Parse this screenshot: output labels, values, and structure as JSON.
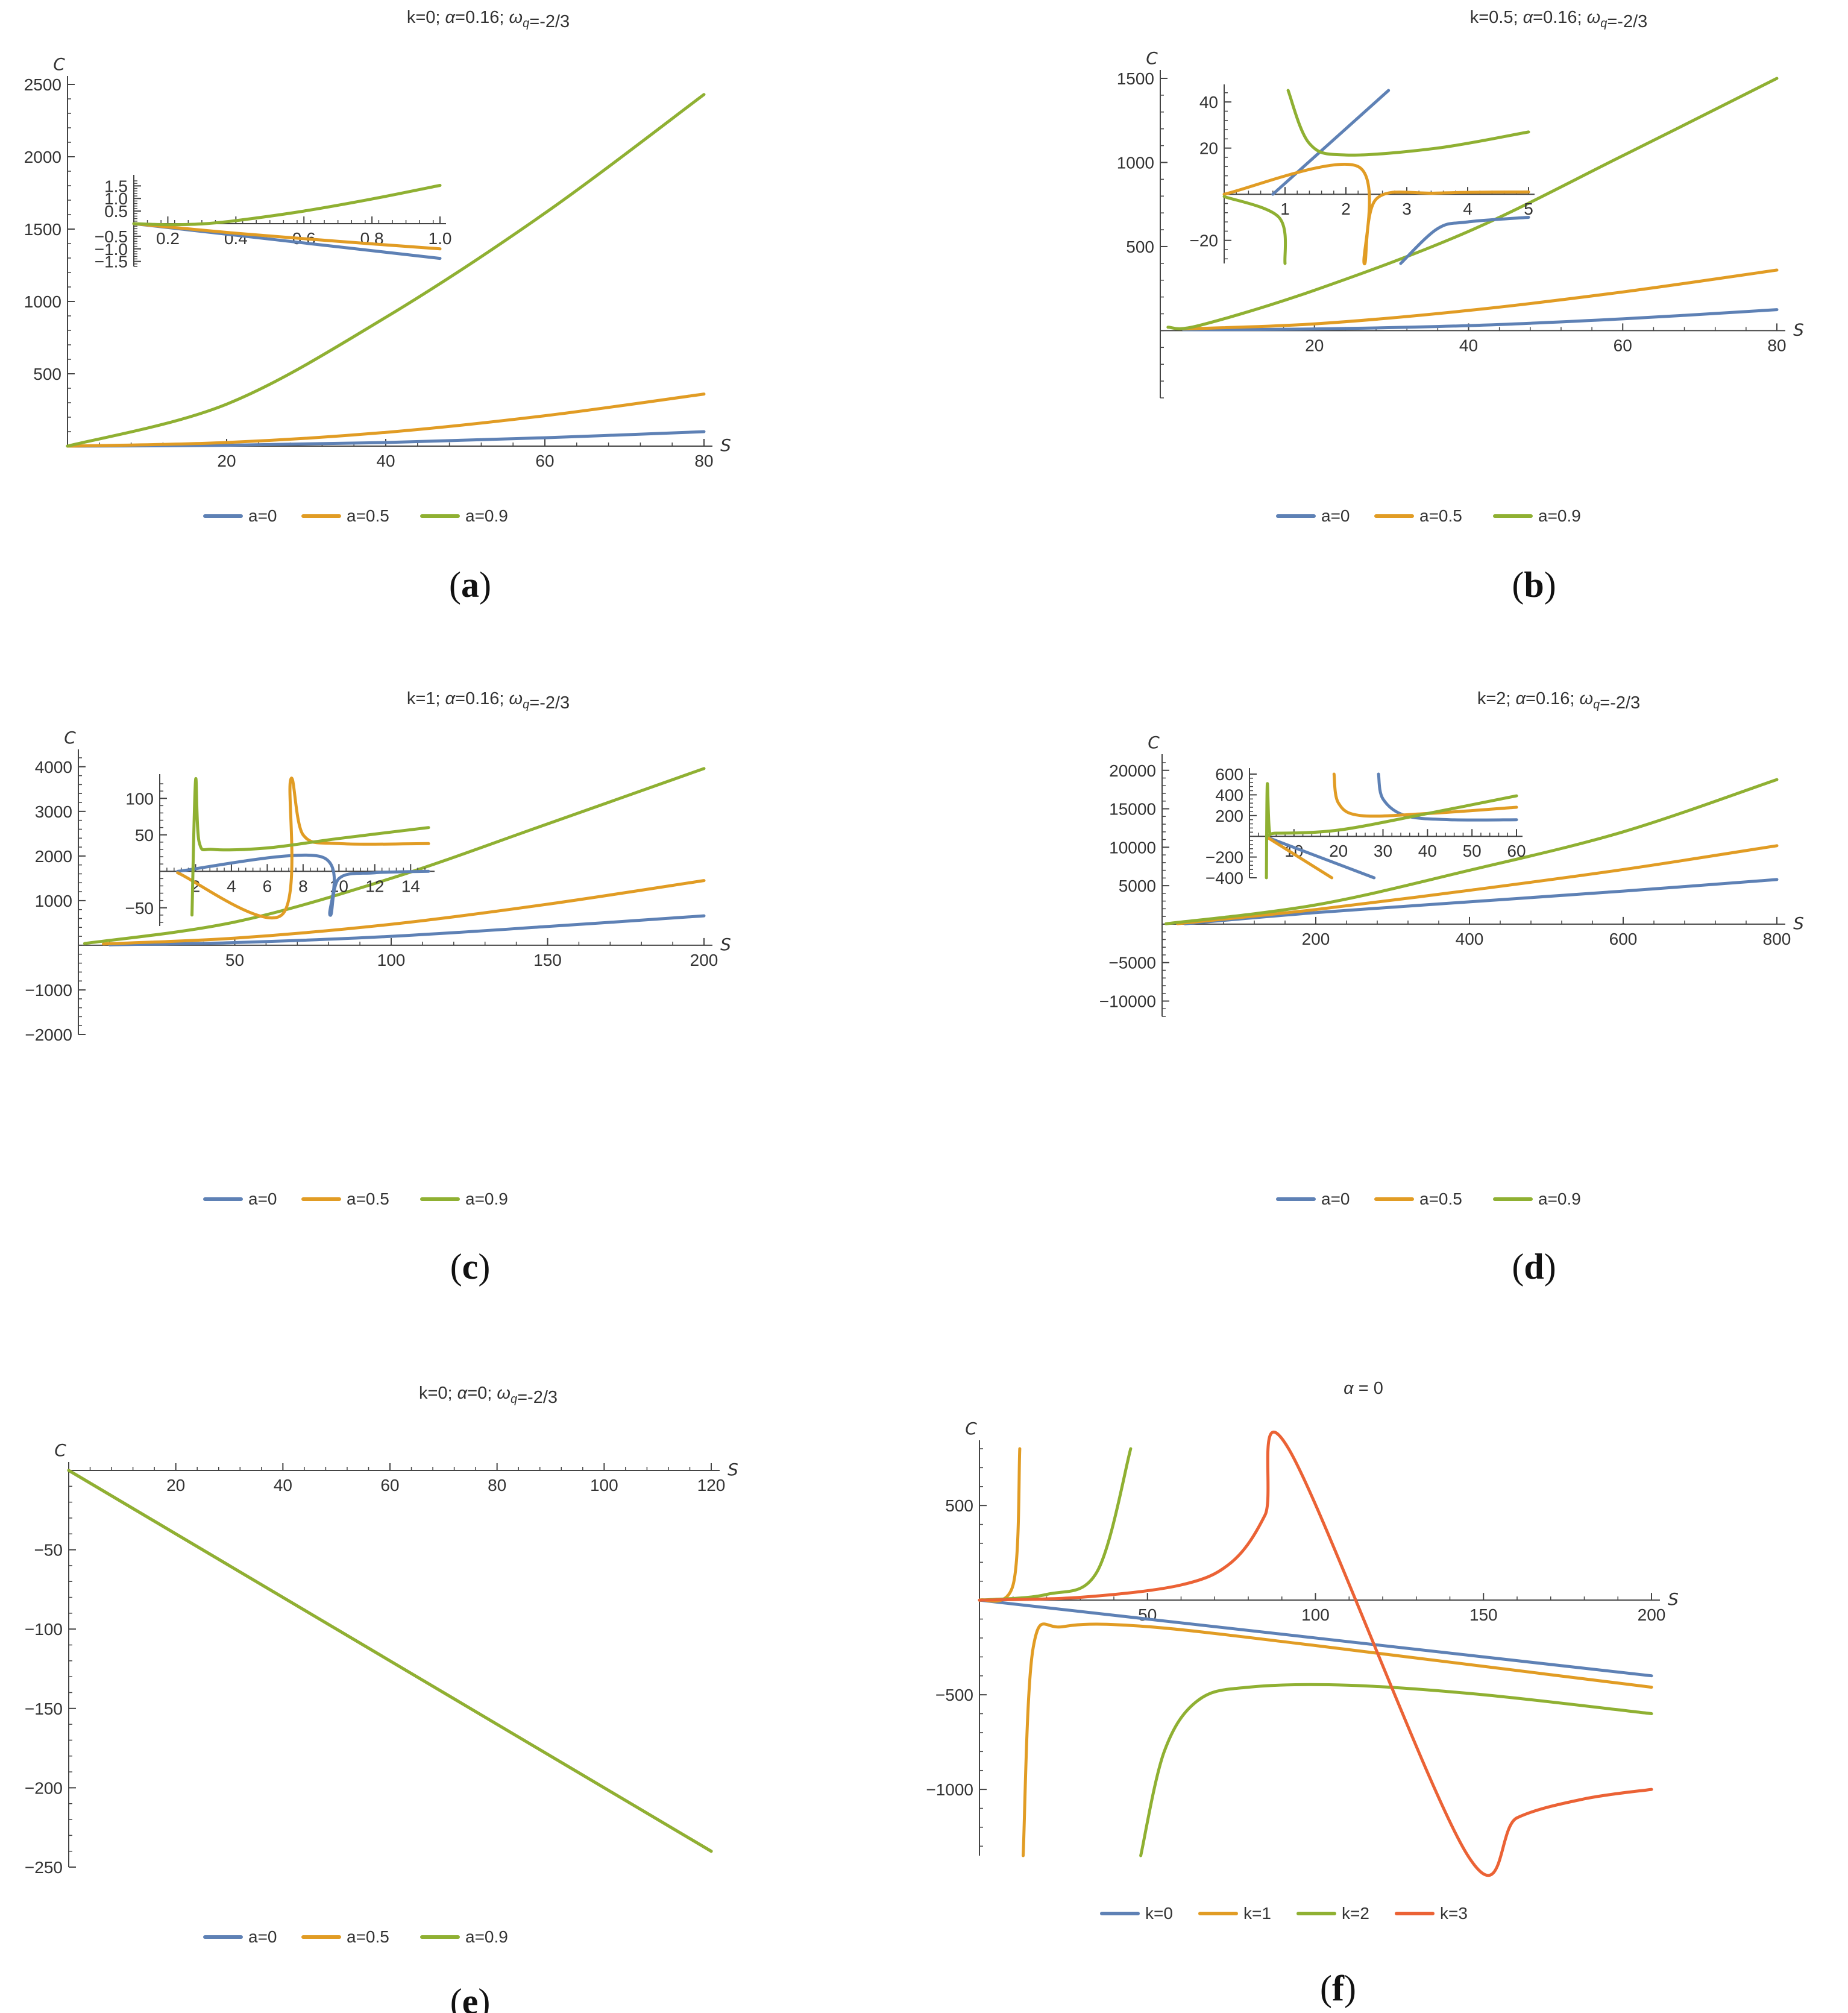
{
  "colors": {
    "a0": "#5E81B5",
    "a05": "#E19C24",
    "a09": "#8FB032",
    "k3": "#EB6235",
    "axis": "#444444"
  },
  "chart_data": [
    {
      "id": "a",
      "type": "line",
      "panel_label": "a",
      "title": "k=0; α=0.16; ω_q=-2/3",
      "xlabel": "S",
      "ylabel": "C",
      "xlim": [
        0,
        80
      ],
      "ylim": [
        0,
        2500
      ],
      "xticks": [
        "20",
        "40",
        "60",
        "80"
      ],
      "yticks": [
        "500",
        "1000",
        "1500",
        "2000",
        "2500"
      ],
      "legend": [
        "a=0",
        "a=0.5",
        "a=0.9"
      ],
      "series": [
        {
          "name": "a=0",
          "x": [
            0,
            20,
            40,
            60,
            80
          ],
          "y": [
            0,
            6,
            25,
            58,
            100
          ]
        },
        {
          "name": "a=0.5",
          "x": [
            0,
            20,
            40,
            60,
            80
          ],
          "y": [
            0,
            25,
            95,
            210,
            360
          ]
        },
        {
          "name": "a=0.9",
          "x": [
            0,
            20,
            40,
            60,
            80
          ],
          "y": [
            0,
            290,
            890,
            1610,
            2430
          ]
        }
      ],
      "inset": {
        "xlim": [
          0.1,
          1.0
        ],
        "ylim": [
          -1.7,
          1.7
        ],
        "xticks": [
          "0.2",
          "0.4",
          "0.6",
          "0.8",
          "1.0"
        ],
        "yticks": [
          "-1.5",
          "-1.0",
          "-0.5",
          "0.5",
          "1.0",
          "1.5"
        ],
        "series": [
          {
            "name": "a=0",
            "x": [
              0.1,
              0.4,
              0.7,
              1.0
            ],
            "y": [
              0.0,
              -0.46,
              -0.92,
              -1.38
            ]
          },
          {
            "name": "a=0.5",
            "x": [
              0.1,
              0.4,
              0.7,
              1.0
            ],
            "y": [
              0.0,
              -0.38,
              -0.7,
              -1.0
            ]
          },
          {
            "name": "a=0.9",
            "x": [
              0.1,
              0.2,
              0.3,
              0.4,
              0.6,
              0.8,
              1.0
            ],
            "y": [
              0.0,
              -0.04,
              -0.01,
              0.12,
              0.5,
              0.98,
              1.52
            ]
          }
        ]
      }
    },
    {
      "id": "b",
      "type": "line",
      "panel_label": "b",
      "title": "k=0.5; α=0.16; ω_q=-2/3",
      "xlabel": "S",
      "ylabel": "C",
      "xlim": [
        0,
        80
      ],
      "ylim": [
        -400,
        1500
      ],
      "xticks": [
        "20",
        "40",
        "60",
        "80"
      ],
      "yticks": [
        "500",
        "1000",
        "1500"
      ],
      "legend": [
        "a=0",
        "a=0.5",
        "a=0.9"
      ],
      "series": [
        {
          "name": "a=0",
          "x": [
            3,
            20,
            40,
            60,
            80
          ],
          "y": [
            5,
            10,
            30,
            70,
            125
          ]
        },
        {
          "name": "a=0.5",
          "x": [
            3,
            20,
            40,
            60,
            80
          ],
          "y": [
            10,
            40,
            120,
            230,
            360
          ]
        },
        {
          "name": "a=0.9",
          "x": [
            1,
            5,
            20,
            40,
            60,
            80
          ],
          "y": [
            20,
            30,
            240,
            590,
            1040,
            1530
          ]
        }
      ],
      "inset": {
        "xlim": [
          0,
          5
        ],
        "ylim": [
          -30,
          45
        ],
        "xticks": [
          "1",
          "2",
          "3",
          "4",
          "5"
        ],
        "yticks": [
          "-20",
          "20",
          "40"
        ],
        "series": [
          {
            "name": "a=0",
            "x": [
              0.8,
              2.7,
              2.9,
              3.5,
              4.0,
              5.0
            ],
            "y": [
              0,
              45,
              -30,
              -15,
              -12,
              -10
            ]
          },
          {
            "name": "a=0.5",
            "x": [
              0,
              2.2,
              2.3,
              2.5,
              3.5,
              5.0
            ],
            "y": [
              0,
              12,
              -30,
              -2,
              0.5,
              1
            ]
          },
          {
            "name": "a=0.9",
            "x": [
              0,
              0.9,
              1.0,
              1.05,
              1.4,
              2.0,
              3.5,
              5.0
            ],
            "y": [
              -1,
              -10,
              -30,
              45,
              22,
              17,
              20,
              27
            ]
          }
        ]
      }
    },
    {
      "id": "c",
      "type": "line",
      "panel_label": "c",
      "title": "k=1; α=0.16; ω_q=-2/3",
      "xlabel": "S",
      "ylabel": "C",
      "xlim": [
        0,
        200
      ],
      "ylim": [
        -2000,
        4200
      ],
      "xticks": [
        "50",
        "100",
        "150",
        "200"
      ],
      "yticks": [
        "-2000",
        "-1000",
        "1000",
        "2000",
        "3000",
        "4000"
      ],
      "legend": [
        "a=0",
        "a=0.5",
        "a=0.9"
      ],
      "series": [
        {
          "name": "a=0",
          "x": [
            10,
            50,
            100,
            150,
            200
          ],
          "y": [
            10,
            60,
            200,
            420,
            660
          ]
        },
        {
          "name": "a=0.5",
          "x": [
            8,
            50,
            100,
            150,
            200
          ],
          "y": [
            30,
            160,
            470,
            920,
            1450
          ]
        },
        {
          "name": "a=0.9",
          "x": [
            2,
            50,
            100,
            150,
            200
          ],
          "y": [
            40,
            520,
            1500,
            2720,
            3960
          ]
        }
      ],
      "inset": {
        "xlim": [
          0,
          15
        ],
        "ylim": [
          -75,
          125
        ],
        "xticks": [
          "2",
          "4",
          "6",
          "8",
          "10",
          "12",
          "14"
        ],
        "yticks": [
          "-50",
          "50",
          "100"
        ],
        "series": [
          {
            "name": "a=0",
            "x": [
              1,
              9,
              9.5,
              10,
              12,
              15
            ],
            "y": [
              0,
              20,
              -60,
              -10,
              -2,
              0
            ]
          },
          {
            "name": "a=0.5",
            "x": [
              1,
              6.8,
              7.3,
              8,
              10,
              15
            ],
            "y": [
              -2,
              -60,
              125,
              50,
              38,
              38
            ]
          },
          {
            "name": "a=0.9",
            "x": [
              1.8,
              2.0,
              2.2,
              3,
              6,
              10,
              15
            ],
            "y": [
              -60,
              125,
              40,
              30,
              32,
              45,
              60
            ]
          }
        ]
      }
    },
    {
      "id": "d",
      "type": "line",
      "panel_label": "d",
      "title": "k=2; α=0.16; ω_q=-2/3",
      "xlabel": "S",
      "ylabel": "C",
      "xlim": [
        0,
        800
      ],
      "ylim": [
        -12000,
        21000
      ],
      "xticks": [
        "200",
        "400",
        "600",
        "800"
      ],
      "yticks": [
        "-10000",
        "-5000",
        "5000",
        "10000",
        "15000",
        "20000"
      ],
      "legend": [
        "a=0",
        "a=0.5",
        "a=0.9"
      ],
      "series": [
        {
          "name": "a=0",
          "x": [
            30,
            200,
            400,
            600,
            800
          ],
          "y": [
            50,
            1500,
            2900,
            4300,
            5800
          ]
        },
        {
          "name": "a=0.5",
          "x": [
            20,
            200,
            400,
            600,
            800
          ],
          "y": [
            60,
            1900,
            4400,
            7100,
            10200
          ]
        },
        {
          "name": "a=0.9",
          "x": [
            5,
            200,
            400,
            600,
            800
          ],
          "y": [
            50,
            2500,
            7000,
            12000,
            18800
          ]
        }
      ],
      "inset": {
        "xlim": [
          0,
          60
        ],
        "ylim": [
          -400,
          600
        ],
        "xticks": [
          "10",
          "20",
          "30",
          "40",
          "50",
          "60"
        ],
        "yticks": [
          "-400",
          "-200",
          "200",
          "400",
          "600"
        ],
        "series": [
          {
            "name": "a=0",
            "x": [
              4,
              28,
              29,
              30,
              35,
              45,
              60
            ],
            "y": [
              -10,
              -400,
              600,
              360,
              200,
              160,
              160
            ]
          },
          {
            "name": "a=0.5",
            "x": [
              4,
              18.5,
              19,
              20,
              25,
              40,
              60
            ],
            "y": [
              -10,
              -400,
              600,
              320,
              200,
              220,
              280
            ]
          },
          {
            "name": "a=0.9",
            "x": [
              3.8,
              4,
              4.5,
              6,
              20,
              40,
              60
            ],
            "y": [
              -400,
              500,
              50,
              30,
              60,
              220,
              390
            ]
          }
        ]
      }
    },
    {
      "id": "e",
      "type": "line",
      "panel_label": "e",
      "title": "k=0; α=0; ω_q=-2/3",
      "xlabel": "S",
      "ylabel": "C",
      "xlim": [
        0,
        120
      ],
      "ylim": [
        -250,
        0
      ],
      "xticks": [
        "20",
        "40",
        "60",
        "80",
        "100",
        "120"
      ],
      "yticks": [
        "-50",
        "-100",
        "-150",
        "-200",
        "-250"
      ],
      "legend": [
        "a=0",
        "a=0.5",
        "a=0.9"
      ],
      "series": [
        {
          "name": "a=0",
          "x": [
            0,
            120
          ],
          "y": [
            0,
            -240
          ]
        },
        {
          "name": "a=0.5",
          "x": [
            0,
            120
          ],
          "y": [
            0,
            -240
          ]
        },
        {
          "name": "a=0.9",
          "x": [
            0,
            120
          ],
          "y": [
            0,
            -240
          ]
        }
      ]
    },
    {
      "id": "f",
      "type": "line",
      "panel_label": "f",
      "title": "α = 0",
      "xlabel": "S",
      "ylabel": "C",
      "xlim": [
        0,
        200
      ],
      "ylim": [
        -1350,
        800
      ],
      "xticks": [
        "50",
        "100",
        "150",
        "200"
      ],
      "yticks": [
        "500",
        "-500",
        "-1000"
      ],
      "legend": [
        "k=0",
        "k=1",
        "k=2",
        "k=3"
      ],
      "series": [
        {
          "name": "k=0",
          "x": [
            0,
            200
          ],
          "y": [
            0,
            -400
          ]
        },
        {
          "name": "k=1",
          "x": [
            0,
            10,
            12,
            13,
            16,
            25,
            50,
            100,
            150,
            200
          ],
          "y": [
            0,
            80,
            800,
            -1350,
            -250,
            -140,
            -140,
            -240,
            -350,
            -460
          ]
        },
        {
          "name": "k=2",
          "x": [
            0,
            20,
            35,
            45,
            48,
            55,
            65,
            80,
            110,
            150,
            200
          ],
          "y": [
            0,
            30,
            150,
            800,
            -1350,
            -800,
            -530,
            -460,
            -450,
            -500,
            -600
          ]
        },
        {
          "name": "k=3",
          "x": [
            0,
            30,
            60,
            75,
            85,
            92,
            145,
            160,
            180,
            200
          ],
          "y": [
            0,
            15,
            80,
            200,
            450,
            800,
            -1340,
            -1150,
            -1050,
            -1000
          ]
        }
      ]
    }
  ]
}
